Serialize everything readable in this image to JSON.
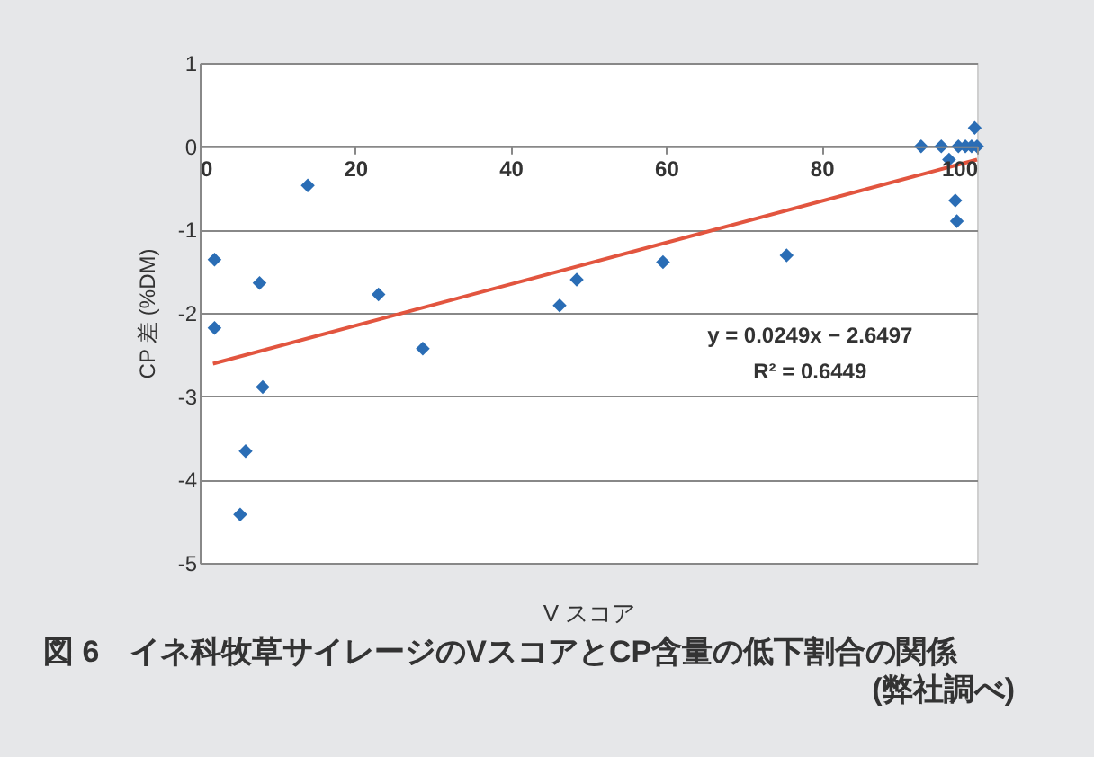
{
  "chart_data": {
    "type": "scatter",
    "title": "図 6　イネ科牧草サイレージのVスコアとCP含量の低下割合の関係",
    "xlabel": "V スコア",
    "ylabel": "CP 差 (%DM)",
    "annotations": [
      "y = 0.0249x − 2.6497",
      "R² = 0.6449",
      "(弊社調べ)"
    ],
    "xlim": [
      0,
      100
    ],
    "xticks": [
      0,
      20,
      40,
      60,
      80,
      100
    ],
    "ylim": [
      -5,
      1
    ],
    "yticks": [
      -5,
      -4,
      -3,
      -2,
      -1,
      0,
      1
    ],
    "grid": "y",
    "marker": "diamond",
    "series": [
      {
        "type": "scatter",
        "color": "#2a6db5",
        "x": [
          1.9,
          1.9,
          13.9,
          7.7,
          8.1,
          5.9,
          5.2,
          23,
          28.7,
          46.3,
          48.5,
          59.6,
          75.5,
          92.8,
          95.4,
          96.4,
          97.6,
          98.5,
          99.3,
          100,
          99.7,
          97.2,
          97.4
        ],
        "values": [
          -1.36,
          -2.18,
          -0.47,
          -1.64,
          -2.89,
          -3.66,
          -4.42,
          -1.78,
          -2.43,
          -1.91,
          -1.6,
          -1.39,
          -1.31,
          0,
          0,
          -0.16,
          0,
          0,
          0,
          0,
          0.22,
          -0.65,
          -0.9
        ]
      },
      {
        "type": "line",
        "color": "#e2553f",
        "marker": "none",
        "x": [
          1.7,
          100
        ],
        "values": [
          -2.61,
          -0.16
        ]
      }
    ]
  }
}
